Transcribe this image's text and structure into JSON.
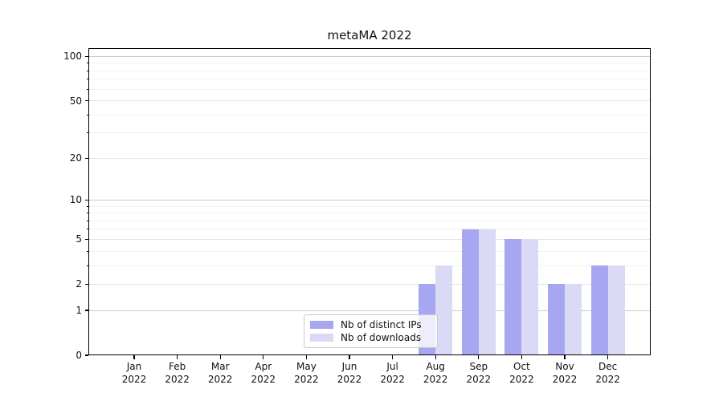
{
  "title": "metaMA 2022",
  "chart_data": {
    "type": "bar",
    "title": "metaMA 2022",
    "categories": [
      "Jan 2022",
      "Feb 2022",
      "Mar 2022",
      "Apr 2022",
      "May 2022",
      "Jun 2022",
      "Jul 2022",
      "Aug 2022",
      "Sep 2022",
      "Oct 2022",
      "Nov 2022",
      "Dec 2022"
    ],
    "series": [
      {
        "name": "Nb of distinct IPs",
        "color": "#a7a7f1",
        "values": [
          0,
          0,
          0,
          0,
          0,
          0,
          0,
          2,
          6,
          5,
          2,
          3
        ]
      },
      {
        "name": "Nb of downloads",
        "color": "#dadaf6",
        "values": [
          0,
          0,
          0,
          0,
          0,
          0,
          0,
          3,
          6,
          5,
          2,
          3
        ]
      }
    ],
    "xlabel": "",
    "ylabel": "",
    "yscale": "log1p",
    "ylim": [
      0,
      114
    ],
    "yticks_labeled": [
      0,
      1,
      2,
      5,
      10,
      20,
      50,
      100
    ],
    "yticks_major": [
      1,
      10,
      100
    ],
    "yticks_mid": [
      2,
      5,
      20,
      50
    ],
    "yticks_minor": [
      3,
      4,
      6,
      7,
      8,
      9,
      30,
      40,
      60,
      70,
      80,
      90
    ],
    "grid": "on",
    "legend_position": "lower center"
  },
  "styles": {
    "bar_ips": "#a7a7f1",
    "bar_downloads": "#dadaf6",
    "grid_major": "#c9c9c9",
    "grid_mid": "#e4e4e4",
    "grid_minor": "#f1f1f1",
    "spine": "#000000",
    "text": "#111111",
    "legend_bg": "rgba(255,255,255,0.8)",
    "legend_border": "#c9c9c9"
  }
}
